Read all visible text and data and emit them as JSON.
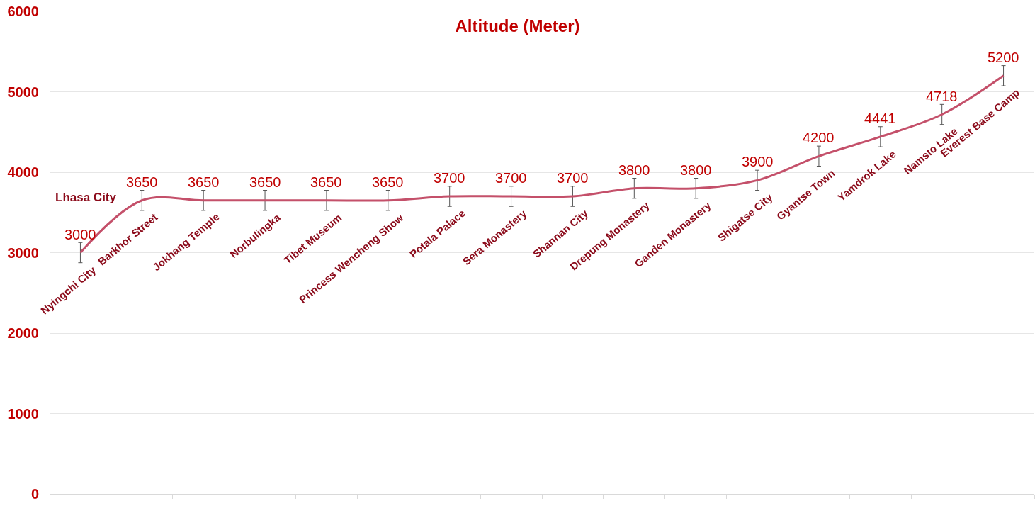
{
  "chart_data": {
    "type": "line",
    "title": "Altitude (Meter)",
    "categories": [
      "Nyingchi City",
      "Barkhor Street",
      "Jokhang Temple",
      "Norbulingka",
      "Tibet Museum",
      "Princess Wencheng Show",
      "Potala Palace",
      "Sera Monastery",
      "Shannan City",
      "Drepung Monastery",
      "Ganden Monastery",
      "Shigatse City",
      "Gyantse Town",
      "Yamdrok Lake",
      "Namsto Lake",
      "Everest Base Camp"
    ],
    "series": [
      {
        "color": "#c4506a",
        "values": [
          3000,
          3650,
          3650,
          3650,
          3650,
          3650,
          3700,
          3700,
          3700,
          3800,
          3800,
          3900,
          4200,
          4441,
          4718,
          5200
        ],
        "errors": [
          125,
          125,
          125,
          125,
          125,
          125,
          125,
          125,
          125,
          125,
          125,
          125,
          125,
          125,
          125,
          125
        ]
      }
    ],
    "ylim": [
      0,
      6000
    ],
    "yticks": [
      0,
      1000,
      2000,
      3000,
      4000,
      5000,
      6000
    ],
    "grid": "y",
    "tick_labels": "y",
    "data_labels": true,
    "marker": "none",
    "line_style": "solid",
    "annotations": [
      "Lhasa City"
    ]
  }
}
